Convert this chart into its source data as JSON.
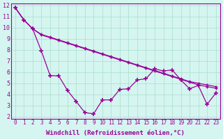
{
  "background_color": "#d5f5f0",
  "line_color": "#990099",
  "xlabel": "Windchill (Refroidissement éolien,°C)",
  "xlim": [
    0,
    23
  ],
  "ylim": [
    2,
    12
  ],
  "yticks": [
    2,
    3,
    4,
    5,
    6,
    7,
    8,
    9,
    10,
    11,
    12
  ],
  "xticks": [
    0,
    1,
    2,
    3,
    4,
    5,
    6,
    7,
    8,
    9,
    10,
    11,
    12,
    13,
    14,
    15,
    16,
    17,
    18,
    19,
    20,
    21,
    22,
    23
  ],
  "series1_x": [
    0,
    1,
    2,
    3,
    4,
    5,
    6,
    7,
    8,
    9,
    10,
    11,
    12,
    13,
    14,
    15,
    16,
    17,
    18,
    19,
    20,
    21,
    22,
    23
  ],
  "series1_y": [
    11.8,
    10.7,
    9.9,
    9.4,
    9.15,
    8.9,
    8.65,
    8.4,
    8.15,
    7.9,
    7.65,
    7.4,
    7.15,
    6.9,
    6.65,
    6.4,
    6.15,
    5.9,
    5.65,
    5.4,
    5.15,
    5.0,
    4.85,
    4.7
  ],
  "series2_x": [
    0,
    1,
    2,
    3,
    4,
    5,
    6,
    7,
    8,
    9,
    10,
    11,
    12,
    13,
    14,
    15,
    16,
    17,
    18,
    19,
    20,
    21,
    22,
    23
  ],
  "series2_y": [
    11.8,
    10.7,
    9.9,
    9.35,
    9.1,
    8.85,
    8.6,
    8.35,
    8.1,
    7.85,
    7.6,
    7.35,
    7.1,
    6.85,
    6.6,
    6.35,
    6.1,
    5.85,
    5.6,
    5.35,
    5.1,
    4.85,
    4.7,
    4.55
  ],
  "series3_x": [
    0,
    1,
    2,
    3,
    4,
    5,
    6,
    7,
    8,
    9,
    10,
    11,
    12,
    13,
    14,
    15,
    16,
    17,
    18,
    19,
    20,
    21,
    22,
    23
  ],
  "series3_y": [
    11.8,
    10.7,
    9.9,
    7.9,
    5.7,
    5.65,
    4.35,
    3.35,
    2.35,
    2.25,
    3.5,
    3.5,
    4.45,
    4.5,
    5.3,
    5.4,
    6.3,
    6.1,
    6.2,
    5.3,
    4.5,
    4.8,
    3.1,
    4.1
  ],
  "gridcolor": "#aaddcc",
  "font_family": "monospace"
}
